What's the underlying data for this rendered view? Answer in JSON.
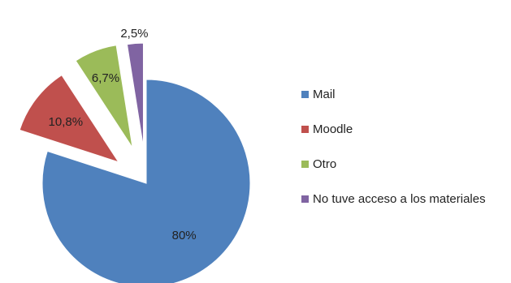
{
  "chart_data": {
    "type": "pie",
    "title": "",
    "slices": [
      {
        "label": "Mail",
        "value": 80,
        "display": "80%",
        "color": "#4F81BD"
      },
      {
        "label": "Moodle",
        "value": 10.8,
        "display": "10,8%",
        "color": "#C0504D"
      },
      {
        "label": "Otro",
        "value": 6.7,
        "display": "6,7%",
        "color": "#9BBB59"
      },
      {
        "label": "No tuve acceso a los materiales",
        "value": 2.5,
        "display": "2,5%",
        "color": "#8064A2"
      }
    ],
    "legend_position": "right",
    "exploded": true,
    "start": "12 o'clock",
    "direction": "clockwise"
  }
}
